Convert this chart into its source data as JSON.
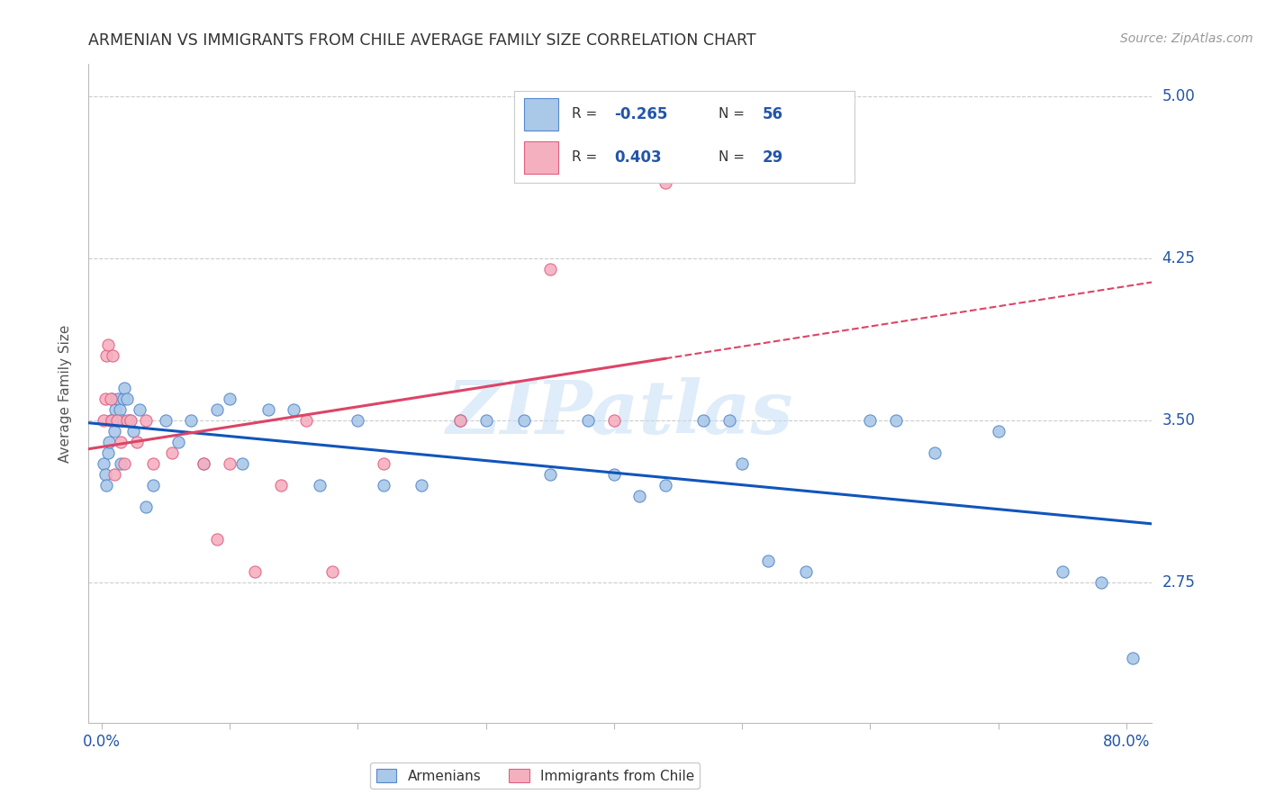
{
  "title": "ARMENIAN VS IMMIGRANTS FROM CHILE AVERAGE FAMILY SIZE CORRELATION CHART",
  "source": "Source: ZipAtlas.com",
  "ylabel": "Average Family Size",
  "watermark": "ZIPatlas",
  "x_tick_positions": [
    0.0,
    10.0,
    20.0,
    30.0,
    40.0,
    50.0,
    60.0,
    70.0,
    80.0
  ],
  "x_tick_labels": [
    "0.0%",
    "",
    "",
    "",
    "",
    "",
    "",
    "",
    "80.0%"
  ],
  "y_ticks_right": [
    2.75,
    3.5,
    4.25,
    5.0
  ],
  "ylim": [
    2.1,
    5.15
  ],
  "xlim": [
    -1.0,
    82.0
  ],
  "armenian_color": "#aac8e8",
  "chile_color": "#f5b0c0",
  "armenian_edge_color": "#5588cc",
  "chile_edge_color": "#e06080",
  "armenian_line_color": "#1155bb",
  "chile_line_color": "#dd4466",
  "background_color": "#ffffff",
  "grid_color": "#cccccc",
  "legend_text_color": "#2255aa",
  "title_color": "#333333",
  "source_color": "#999999",
  "armenian_R": "-0.265",
  "armenian_N": "56",
  "chile_R": "0.403",
  "chile_N": "29",
  "legend_label_armenian": "Armenians",
  "legend_label_chile": "Immigrants from Chile",
  "armenian_x": [
    0.2,
    0.3,
    0.4,
    0.5,
    0.6,
    0.7,
    0.8,
    0.9,
    1.0,
    1.1,
    1.2,
    1.3,
    1.4,
    1.5,
    1.6,
    1.7,
    1.8,
    2.0,
    2.2,
    2.5,
    3.0,
    3.5,
    4.0,
    5.0,
    6.0,
    7.0,
    8.0,
    9.0,
    10.0,
    11.0,
    13.0,
    15.0,
    17.0,
    20.0,
    22.0,
    25.0,
    28.0,
    30.0,
    33.0,
    35.0,
    38.0,
    40.0,
    42.0,
    44.0,
    47.0,
    49.0,
    50.0,
    52.0,
    55.0,
    60.0,
    62.0,
    65.0,
    70.0,
    75.0,
    78.0,
    80.5
  ],
  "armenian_y": [
    3.3,
    3.25,
    3.2,
    3.35,
    3.4,
    3.5,
    3.6,
    3.5,
    3.45,
    3.55,
    3.5,
    3.6,
    3.55,
    3.3,
    3.5,
    3.6,
    3.65,
    3.6,
    3.5,
    3.45,
    3.55,
    3.1,
    3.2,
    3.5,
    3.4,
    3.5,
    3.3,
    3.55,
    3.6,
    3.3,
    3.55,
    3.55,
    3.2,
    3.5,
    3.2,
    3.2,
    3.5,
    3.5,
    3.5,
    3.25,
    3.5,
    3.25,
    3.15,
    3.2,
    3.5,
    3.5,
    3.3,
    2.85,
    2.8,
    3.5,
    3.5,
    3.35,
    3.45,
    2.8,
    2.75,
    2.4
  ],
  "chile_x": [
    0.2,
    0.3,
    0.4,
    0.5,
    0.7,
    0.8,
    0.9,
    1.0,
    1.2,
    1.5,
    1.8,
    2.0,
    2.3,
    2.8,
    3.5,
    4.0,
    5.5,
    8.0,
    9.0,
    10.0,
    12.0,
    14.0,
    16.0,
    18.0,
    22.0,
    28.0,
    35.0,
    40.0,
    44.0
  ],
  "chile_y": [
    3.5,
    3.6,
    3.8,
    3.85,
    3.6,
    3.5,
    3.8,
    3.25,
    3.5,
    3.4,
    3.3,
    3.5,
    3.5,
    3.4,
    3.5,
    3.3,
    3.35,
    3.3,
    2.95,
    3.3,
    2.8,
    3.2,
    3.5,
    2.8,
    3.3,
    3.5,
    4.2,
    3.5,
    4.6
  ]
}
